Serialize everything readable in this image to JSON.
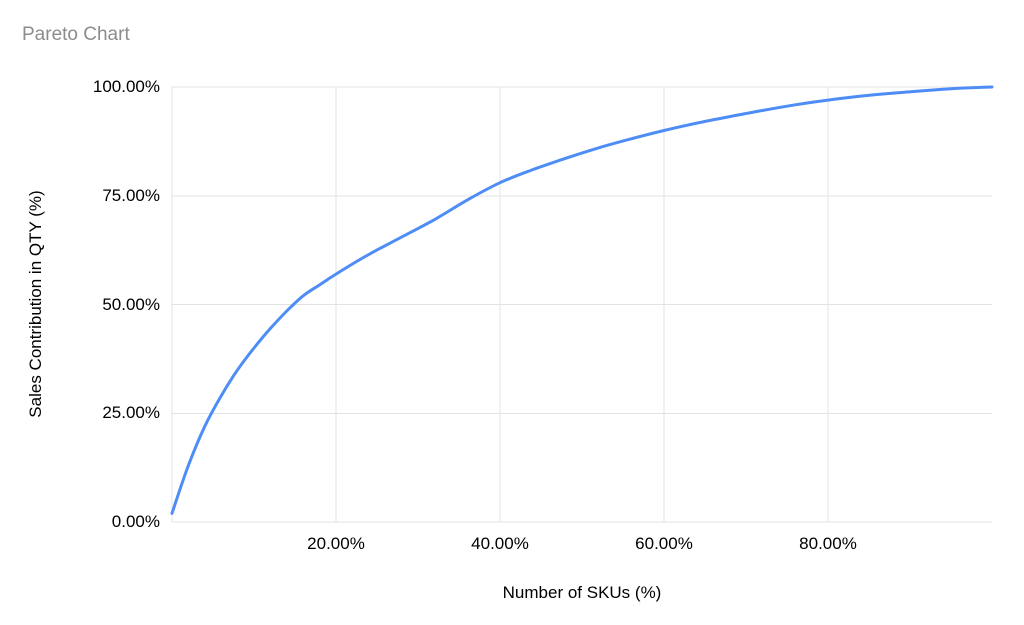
{
  "chart_data": {
    "type": "line",
    "title": "Pareto Chart",
    "xlabel": "Number of SKUs (%)",
    "ylabel": "Sales Contribution in QTY (%)",
    "xlim": [
      0,
      100
    ],
    "ylim": [
      0,
      100
    ],
    "grid": true,
    "legend_position": "none",
    "x_grid": [
      0,
      20,
      40,
      60,
      80
    ],
    "x_ticks": [
      20,
      40,
      60,
      80
    ],
    "x_tick_labels": [
      "20.00%",
      "40.00%",
      "60.00%",
      "80.00%"
    ],
    "y_ticks": [
      0,
      25,
      50,
      75,
      100
    ],
    "y_tick_labels": [
      "0.00%",
      "25.00%",
      "50.00%",
      "75.00%",
      "100.00%"
    ],
    "series": [
      {
        "name": "Sales Contribution in QTY (%)",
        "color": "#4e8df5",
        "x": [
          0,
          2,
          4,
          6,
          8,
          10,
          12,
          14,
          16,
          18,
          20,
          24,
          28,
          32,
          36,
          40,
          44,
          48,
          52,
          56,
          60,
          64,
          68,
          72,
          76,
          80,
          84,
          88,
          92,
          96,
          100
        ],
        "y": [
          2,
          13,
          22,
          29,
          35,
          40,
          44.5,
          48.5,
          52,
          54.5,
          57,
          61.5,
          65.5,
          69.5,
          74,
          78,
          81,
          83.6,
          86,
          88.1,
          90,
          91.7,
          93.2,
          94.6,
          95.9,
          97,
          97.9,
          98.6,
          99.2,
          99.7,
          100
        ]
      }
    ],
    "colors": {
      "line": "#4e8df5",
      "grid": "#e3e3e3",
      "title": "#8c8c8c",
      "tick_text": "#000000",
      "background": "#ffffff"
    }
  }
}
